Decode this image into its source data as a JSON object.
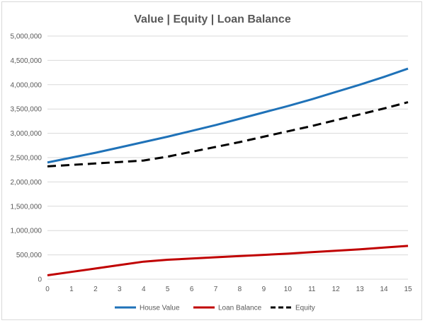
{
  "chart_data": {
    "type": "line",
    "title": "Value | Equity | Loan Balance",
    "x": [
      0,
      1,
      2,
      3,
      4,
      5,
      6,
      7,
      8,
      9,
      10,
      11,
      12,
      13,
      14,
      15
    ],
    "ylim": [
      0,
      5000000
    ],
    "yticks": [
      0,
      500000,
      1000000,
      1500000,
      2000000,
      2500000,
      3000000,
      3500000,
      4000000,
      4500000,
      5000000
    ],
    "ytick_labels": [
      "0",
      "500,000",
      "1,000,000",
      "1,500,000",
      "2,000,000",
      "2,500,000",
      "3,000,000",
      "3,500,000",
      "4,000,000",
      "4,500,000",
      "5,000,000"
    ],
    "xtick_labels": [
      "0",
      "1",
      "2",
      "3",
      "4",
      "5",
      "6",
      "7",
      "8",
      "9",
      "10",
      "11",
      "12",
      "13",
      "14",
      "15"
    ],
    "grid": "horizontal",
    "legend_position": "bottom",
    "series": [
      {
        "name": "House Value",
        "color": "#1f72b8",
        "style": "solid",
        "values": [
          2400000,
          2500000,
          2600000,
          2710000,
          2820000,
          2930000,
          3050000,
          3170000,
          3300000,
          3430000,
          3560000,
          3700000,
          3850000,
          4000000,
          4160000,
          4330000
        ]
      },
      {
        "name": "Loan Balance",
        "color": "#c00000",
        "style": "solid",
        "values": [
          80000,
          150000,
          220000,
          290000,
          360000,
          400000,
          425000,
          450000,
          475000,
          500000,
          525000,
          555000,
          585000,
          615000,
          650000,
          685000
        ]
      },
      {
        "name": "Equity",
        "color": "#000000",
        "style": "dashed",
        "values": [
          2320000,
          2350000,
          2380000,
          2410000,
          2440000,
          2520000,
          2620000,
          2720000,
          2820000,
          2930000,
          3040000,
          3150000,
          3270000,
          3390000,
          3510000,
          3640000
        ]
      }
    ]
  }
}
